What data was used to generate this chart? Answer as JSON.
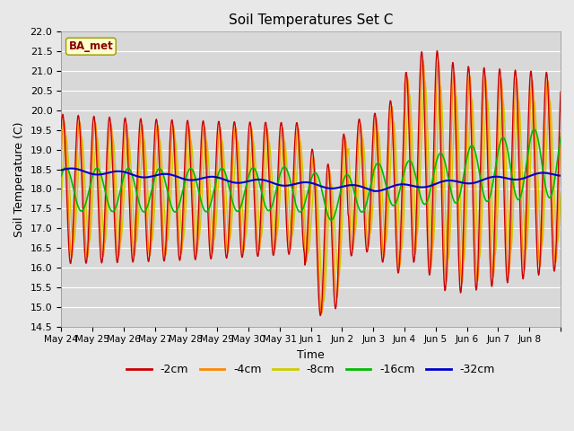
{
  "title": "Soil Temperatures Set C",
  "xlabel": "Time",
  "ylabel": "Soil Temperature (C)",
  "ylim": [
    14.5,
    22.0
  ],
  "yticks": [
    14.5,
    15.0,
    15.5,
    16.0,
    16.5,
    17.0,
    17.5,
    18.0,
    18.5,
    19.0,
    19.5,
    20.0,
    20.5,
    21.0,
    21.5,
    22.0
  ],
  "xtick_labels": [
    "May 24",
    "May 25",
    "May 26",
    "May 27",
    "May 28",
    "May 29",
    "May 30",
    "May 31",
    "Jun 1",
    "Jun 2",
    "Jun 3",
    "Jun 4",
    "Jun 5",
    "Jun 6",
    "Jun 7",
    "Jun 8"
  ],
  "colors": {
    "-2cm": "#cc0000",
    "-4cm": "#ff8800",
    "-8cm": "#cccc00",
    "-16cm": "#00bb00",
    "-32cm": "#0000cc"
  },
  "legend_label": "BA_met",
  "legend_box_facecolor": "#ffffcc",
  "legend_box_edgecolor": "#999900",
  "legend_text_color": "#880000",
  "fig_facecolor": "#e8e8e8",
  "ax_facecolor": "#d8d8d8",
  "grid_color": "#ffffff",
  "days": 16,
  "n_points": 960
}
